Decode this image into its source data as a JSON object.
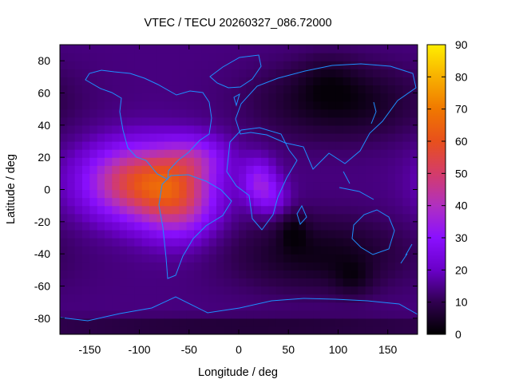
{
  "chart_data": {
    "type": "heatmap",
    "title": "VTEC / TECU 20260327_086.72000",
    "xlabel": "Longitude / deg",
    "ylabel": "Latitude / deg",
    "xlim": [
      -180,
      180
    ],
    "ylim": [
      -90,
      90
    ],
    "x_ticks": [
      -150,
      -100,
      -50,
      0,
      50,
      100,
      150
    ],
    "y_ticks": [
      -80,
      -60,
      -40,
      -20,
      0,
      20,
      40,
      60,
      80
    ],
    "colorbar": {
      "min": 0,
      "max": 90,
      "ticks": [
        0,
        10,
        20,
        30,
        40,
        50,
        60,
        70,
        80,
        90
      ],
      "palette": [
        "#000000",
        "#30004f",
        "#6a00c8",
        "#8a10ff",
        "#b030c0",
        "#d43c6a",
        "#e8501c",
        "#f07800",
        "#f8b000",
        "#ffee00"
      ]
    },
    "coastline_color": "#1e90ff",
    "field_components": [
      {
        "lon": -100,
        "lat": 5,
        "sigma_lon": 38,
        "sigma_lat": 16,
        "amplitude": 42
      },
      {
        "lon": -60,
        "lat": -8,
        "sigma_lon": 26,
        "sigma_lat": 16,
        "amplitude": 26
      },
      {
        "lon": -45,
        "lat": 20,
        "sigma_lon": 24,
        "sigma_lat": 10,
        "amplitude": 16
      },
      {
        "lon": 20,
        "lat": 5,
        "sigma_lon": 12,
        "sigma_lat": 10,
        "amplitude": 18
      },
      {
        "lon": 35,
        "lat": -5,
        "sigma_lon": 12,
        "sigma_lat": 8,
        "amplitude": 10
      },
      {
        "lon": 100,
        "lat": 55,
        "sigma_lon": 55,
        "sigma_lat": 16,
        "amplitude": -12
      },
      {
        "lon": 80,
        "lat": -40,
        "sigma_lon": 60,
        "sigma_lat": 16,
        "amplitude": -11
      },
      {
        "lon": 55,
        "lat": -25,
        "sigma_lon": 10,
        "sigma_lat": 8,
        "amplitude": -7
      },
      {
        "lon": 115,
        "lat": -55,
        "sigma_lon": 14,
        "sigma_lat": 8,
        "amplitude": -6
      },
      {
        "lon": 0,
        "lat": -85,
        "sigma_lon": 200,
        "sigma_lat": 4,
        "amplitude": -8
      },
      {
        "lon": 90,
        "lat": 70,
        "sigma_lon": 20,
        "sigma_lat": 10,
        "amplitude": -4
      }
    ],
    "field_background": 14,
    "field_grid": {
      "dlon": 7.5,
      "dlat": 5.0
    }
  }
}
